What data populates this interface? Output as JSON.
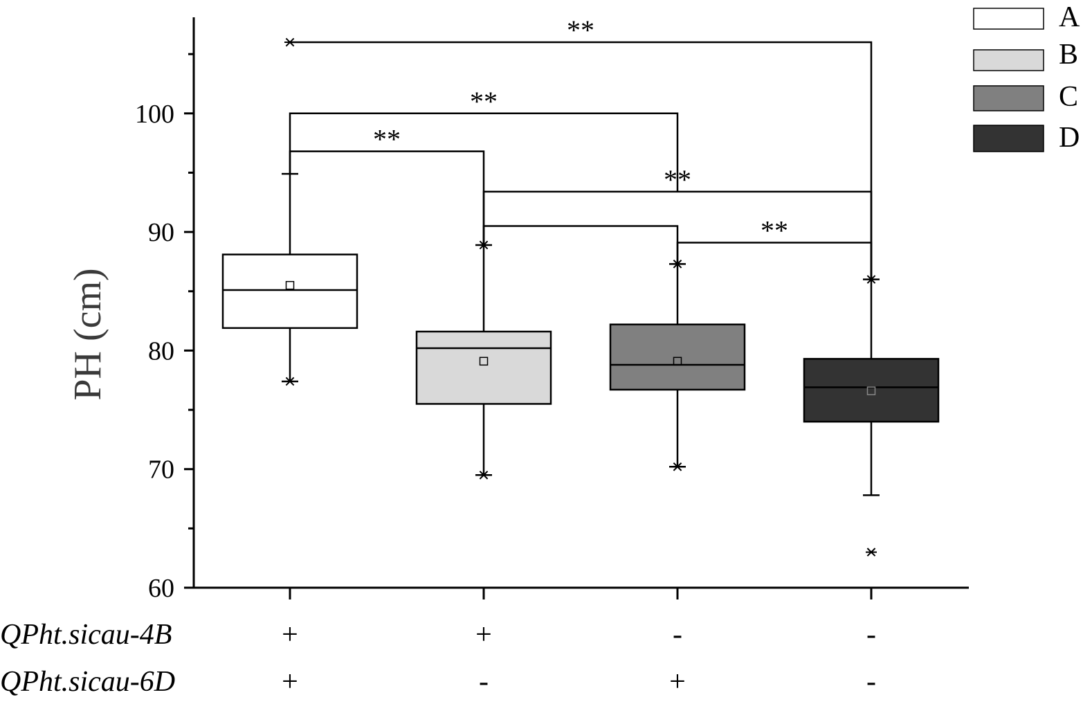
{
  "chart_data": {
    "type": "box",
    "ylabel": "PH (cm)",
    "ylim": [
      60,
      107
    ],
    "yticks": [
      60,
      70,
      80,
      90,
      100
    ],
    "minor_yticks": [
      65,
      75,
      85,
      95,
      105
    ],
    "groups": [
      {
        "name": "A",
        "color": "#ffffff",
        "q1": 81.9,
        "median": 85.1,
        "q3": 88.1,
        "mean": 85.5,
        "whisker_low": 77.4,
        "whisker_high": 94.9,
        "min_marker": 77.4,
        "max_marker": 106.0,
        "outliers": []
      },
      {
        "name": "B",
        "color": "#d9d9d9",
        "q1": 75.5,
        "median": 80.2,
        "q3": 81.6,
        "mean": 79.1,
        "whisker_low": 69.5,
        "whisker_high": 88.9,
        "min_marker": 69.5,
        "max_marker": 88.9,
        "outliers": []
      },
      {
        "name": "C",
        "color": "#808080",
        "q1": 76.7,
        "median": 78.8,
        "q3": 82.2,
        "mean": 79.1,
        "whisker_low": 70.2,
        "whisker_high": 87.3,
        "min_marker": 70.2,
        "max_marker": 87.3,
        "outliers": []
      },
      {
        "name": "D",
        "color": "#333333",
        "q1": 74.0,
        "median": 76.9,
        "q3": 79.3,
        "mean": 76.6,
        "whisker_low": 67.8,
        "whisker_high": 86.0,
        "min_marker": null,
        "max_marker": 86.0,
        "outliers": [
          63.0
        ]
      }
    ],
    "genotype_rows": [
      {
        "label": "QPht.sicau-4B",
        "values": [
          "+",
          "+",
          "-",
          "-"
        ]
      },
      {
        "label": "QPht.sicau-6D",
        "values": [
          "+",
          "-",
          "+",
          "-"
        ]
      }
    ],
    "comparisons": [
      {
        "from": 0,
        "to": 3,
        "y": 106.0,
        "label": "**"
      },
      {
        "from": 0,
        "to": 2,
        "y": 100.0,
        "label": "**"
      },
      {
        "from": 0,
        "to": 1,
        "y": 96.8,
        "label": "**"
      },
      {
        "from": 1,
        "to": 3,
        "y": 93.4,
        "label": "**"
      },
      {
        "from": 1,
        "to": 2,
        "y": 90.5,
        "label": ""
      },
      {
        "from": 2,
        "to": 3,
        "y": 89.1,
        "label": "**"
      }
    ],
    "legend": {
      "position": "top-right",
      "entries": [
        "A",
        "B",
        "C",
        "D"
      ]
    }
  }
}
